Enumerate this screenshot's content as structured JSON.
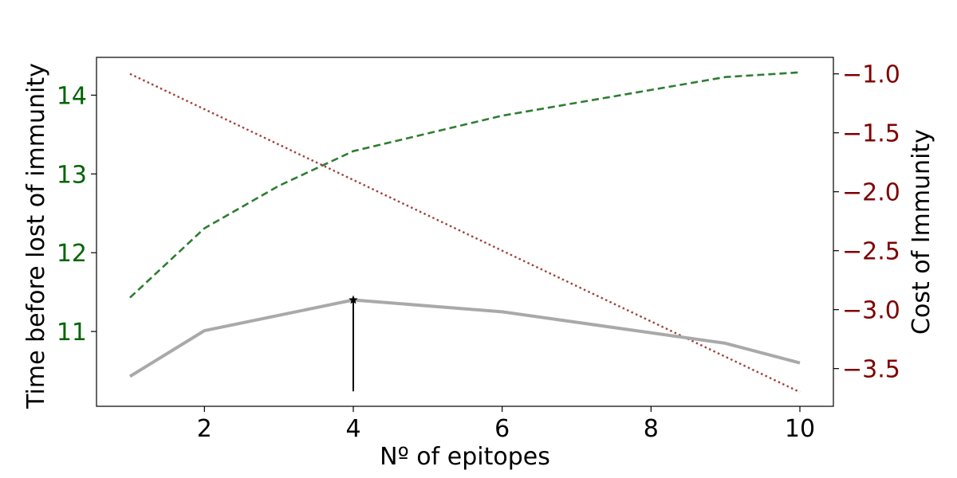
{
  "chart_data": {
    "type": "line",
    "xlabel": "Nº of epitopes",
    "ylabel_left": "Time before lost of immunity",
    "ylabel_right": "Cost of Immunity",
    "xlim": [
      0.55,
      10.45
    ],
    "ylim_left": [
      10.05,
      14.48
    ],
    "ylim_right": [
      -3.82,
      -0.86
    ],
    "x_ticks": [
      2,
      4,
      6,
      8,
      10
    ],
    "y_ticks_left": [
      11,
      12,
      13,
      14
    ],
    "y_ticks_right": [
      -1.0,
      -1.5,
      -2.0,
      -2.5,
      -3.0,
      -3.5
    ],
    "y_tick_labels_right": [
      "−1.0",
      "−1.5",
      "−2.0",
      "−2.5",
      "−3.0",
      "−3.5"
    ],
    "grid": false,
    "colors": {
      "left_axis": "#006400",
      "right_axis": "#800000",
      "time_series": "#2e7d32",
      "cost_series": "#a0403a",
      "total_series": "#a9a9a9",
      "marker": "#000000"
    },
    "series": [
      {
        "id": "time",
        "axis": "left",
        "style": "dashed",
        "x": [
          1,
          2,
          3,
          4,
          6,
          9,
          10
        ],
        "y": [
          11.43,
          12.31,
          12.85,
          13.29,
          13.74,
          14.23,
          14.29
        ]
      },
      {
        "id": "cost",
        "axis": "right",
        "style": "dotted",
        "x": [
          1,
          10
        ],
        "y": [
          -1.0,
          -3.7
        ]
      },
      {
        "id": "total",
        "axis": "left",
        "style": "solid",
        "x": [
          1,
          2,
          4,
          6,
          9,
          10
        ],
        "y": [
          10.43,
          11.01,
          11.4,
          11.25,
          10.85,
          10.6
        ]
      }
    ],
    "optimum": {
      "x": 4,
      "y": 11.4,
      "baseline_y": 10.24,
      "marker": "star"
    }
  }
}
